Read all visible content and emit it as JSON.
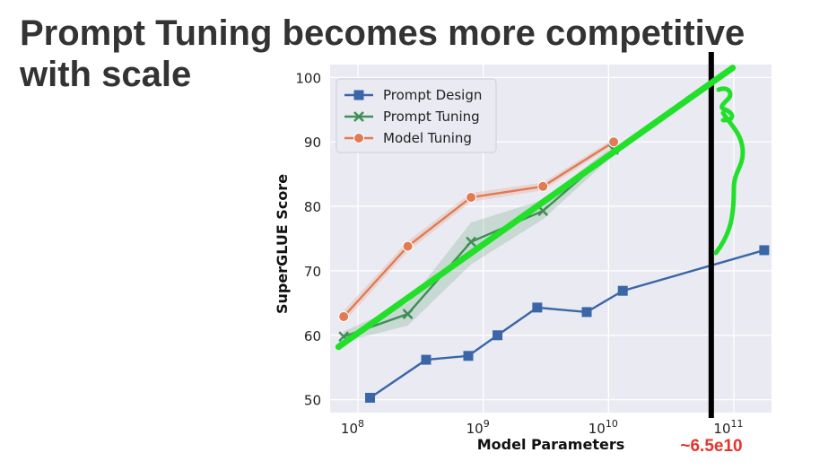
{
  "slide": {
    "title_line1": "Prompt Tuning becomes more competitive",
    "title_line2": "with scale"
  },
  "annotation": {
    "threshold_label": "~6.5e10",
    "threshold_x": 65000000000,
    "threshold_color": "#000000",
    "trend_color": "#22e02a",
    "label_color": "#e8332a"
  },
  "chart_data": {
    "type": "line",
    "xlabel": "Model Parameters",
    "ylabel": "SuperGLUE Score",
    "xscale": "log",
    "xlim": [
      60000000,
      200000000000
    ],
    "ylim": [
      48,
      102
    ],
    "yticks": [
      50,
      60,
      70,
      80,
      90,
      100
    ],
    "xticks": [
      {
        "value": 100000000,
        "base": "10",
        "exp": "8"
      },
      {
        "value": 1000000000,
        "base": "10",
        "exp": "9"
      },
      {
        "value": 10000000000,
        "base": "10",
        "exp": "10"
      },
      {
        "value": 100000000000,
        "base": "10",
        "exp": "11"
      }
    ],
    "grid": true,
    "legend": "top-left",
    "series": [
      {
        "name": "Prompt Design",
        "color": "#3a66a8",
        "marker": "square",
        "x": [
          125000000,
          350000000,
          760000000,
          1300000000,
          2700000000,
          6700000000,
          13000000000,
          175000000000
        ],
        "y": [
          50.3,
          56.2,
          56.8,
          60.0,
          64.3,
          63.6,
          66.9,
          73.2
        ]
      },
      {
        "name": "Prompt Tuning",
        "color": "#3f8f57",
        "marker": "x",
        "x": [
          77000000,
          250000000,
          800000000,
          3000000000,
          11000000000
        ],
        "y": [
          59.8,
          63.3,
          74.5,
          79.3,
          88.8
        ],
        "band_low": [
          59.0,
          61.5,
          71.0,
          78.0,
          88.0
        ],
        "band_high": [
          60.6,
          65.0,
          77.5,
          81.0,
          89.5
        ]
      },
      {
        "name": "Model Tuning",
        "color": "#e07b54",
        "marker": "circle",
        "x": [
          77000000,
          250000000,
          800000000,
          3000000000,
          11000000000
        ],
        "y": [
          62.9,
          73.8,
          81.4,
          83.1,
          90.0
        ],
        "band_low": [
          62.0,
          73.0,
          80.7,
          82.5,
          89.5
        ],
        "band_high": [
          63.8,
          74.6,
          82.1,
          83.7,
          90.5
        ]
      }
    ]
  }
}
